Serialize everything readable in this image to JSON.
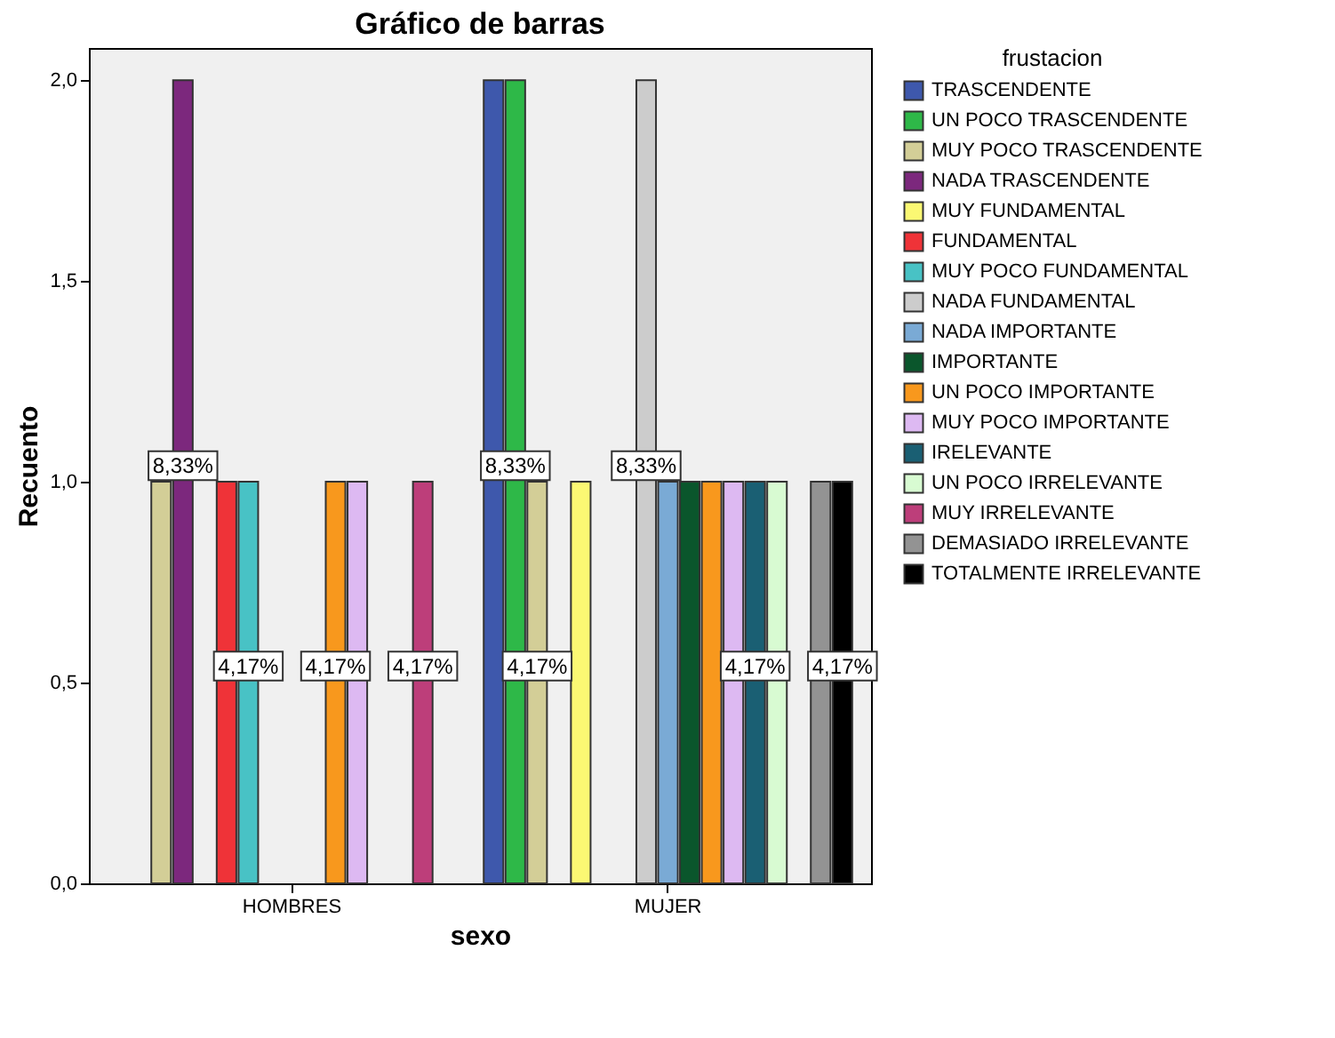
{
  "chart_data": {
    "type": "bar",
    "title": "Gráfico de barras",
    "xlabel": "sexo",
    "ylabel": "Recuento",
    "legend_title": "frustacion",
    "legend": "right",
    "grid": false,
    "categories": [
      "HOMBRES",
      "MUJER"
    ],
    "ylim": [
      0,
      2.08
    ],
    "yticks": [
      {
        "value": 0,
        "label": "0,0"
      },
      {
        "value": 0.5,
        "label": "0,5"
      },
      {
        "value": 1,
        "label": "1,0"
      },
      {
        "value": 1.5,
        "label": "1,5"
      },
      {
        "value": 2,
        "label": "2,0"
      }
    ],
    "series": [
      {
        "name": "TRASCENDENTE",
        "color": "#3e58ac",
        "values": [
          null,
          2
        ]
      },
      {
        "name": "UN POCO TRASCENDENTE",
        "color": "#2eb848",
        "values": [
          null,
          2
        ]
      },
      {
        "name": "MUY POCO TRASCENDENTE",
        "color": "#d3ce97",
        "values": [
          1,
          1
        ]
      },
      {
        "name": "NADA TRASCENDENTE",
        "color": "#7c287d",
        "values": [
          2,
          null
        ]
      },
      {
        "name": "MUY FUNDAMENTAL",
        "color": "#fbf873",
        "values": [
          null,
          1
        ]
      },
      {
        "name": "FUNDAMENTAL",
        "color": "#ef3338",
        "values": [
          1,
          null
        ]
      },
      {
        "name": "MUY POCO FUNDAMENTAL",
        "color": "#48c2c5",
        "values": [
          1,
          null
        ]
      },
      {
        "name": "NADA FUNDAMENTAL",
        "color": "#cccccc",
        "values": [
          null,
          2
        ]
      },
      {
        "name": "NADA IMPORTANTE",
        "color": "#7aaad5",
        "values": [
          null,
          1
        ]
      },
      {
        "name": "IMPORTANTE",
        "color": "#0a562c",
        "values": [
          null,
          1
        ]
      },
      {
        "name": "UN POCO IMPORTANTE",
        "color": "#f8981d",
        "values": [
          1,
          1
        ]
      },
      {
        "name": "MUY POCO IMPORTANTE",
        "color": "#ddb9f2",
        "values": [
          1,
          1
        ]
      },
      {
        "name": "IRELEVANTE",
        "color": "#1a5f73",
        "values": [
          null,
          1
        ]
      },
      {
        "name": "UN POCO IRRELEVANTE",
        "color": "#d8fbd2",
        "values": [
          null,
          1
        ]
      },
      {
        "name": "MUY IRRELEVANTE",
        "color": "#bd3e7a",
        "values": [
          1,
          null
        ]
      },
      {
        "name": "DEMASIADO IRRELEVANTE",
        "color": "#939393",
        "values": [
          null,
          1
        ]
      },
      {
        "name": "TOTALMENTE IRRELEVANTE",
        "color": "#000000",
        "values": [
          null,
          1
        ]
      }
    ],
    "annotations": [
      "8,33%",
      "4,17%",
      "4,17%",
      "4,17%",
      "8,33%",
      "8,33%",
      "4,17%",
      "4,17%",
      "4,17%"
    ]
  }
}
